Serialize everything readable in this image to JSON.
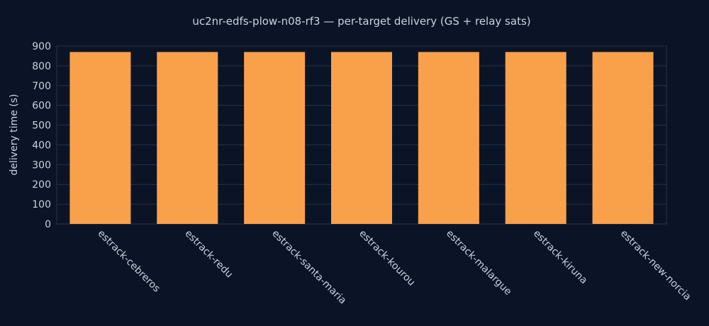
{
  "chart_data": {
    "type": "bar",
    "title": "uc2nr-edfs-plow-n08-rf3 — per-target delivery (GS + relay sats)",
    "y_label": "delivery time (s)",
    "categories": [
      "estrack-cebreros",
      "estrack-redu",
      "estrack-santa-maria",
      "estrack-kourou",
      "estrack-malargue",
      "estrack-kiruna",
      "estrack-new-norcia"
    ],
    "values": [
      870,
      870,
      870,
      870,
      870,
      870,
      870
    ],
    "color": "#f9a04a",
    "ylim": [
      0,
      900
    ],
    "yticks": [
      0,
      100,
      200,
      300,
      400,
      500,
      600,
      700,
      800,
      900
    ],
    "grid": true
  }
}
